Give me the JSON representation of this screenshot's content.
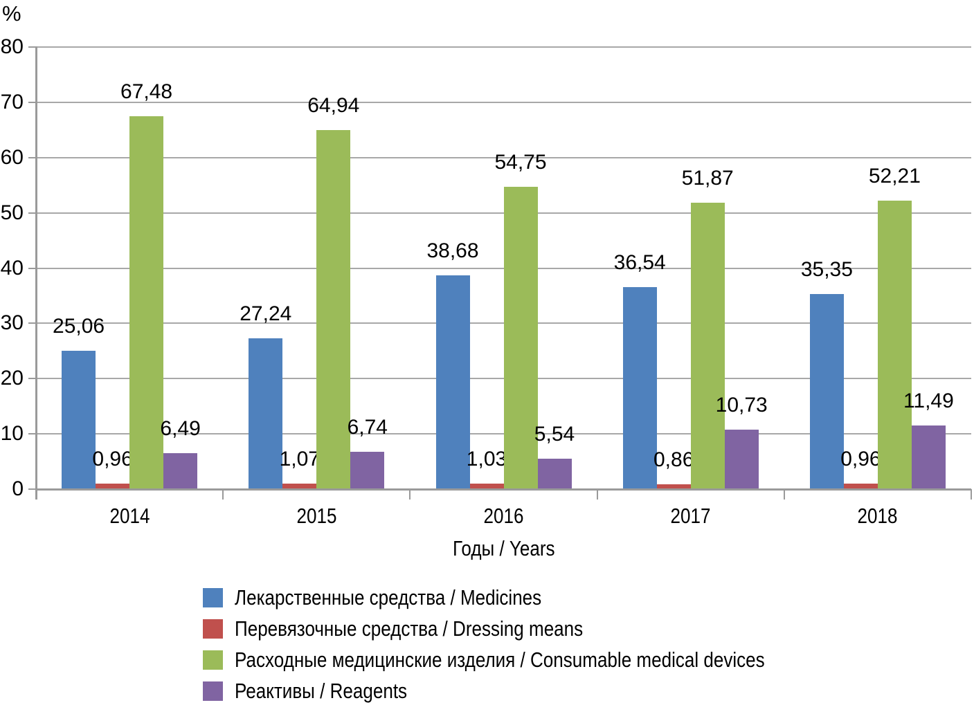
{
  "figure": {
    "y_unit_label": "%",
    "x_axis_title": "Годы / Years"
  },
  "chart_data": {
    "type": "bar",
    "title": "",
    "xlabel": "Годы / Years",
    "ylabel": "%",
    "categories": [
      "2014",
      "2015",
      "2016",
      "2017",
      "2018"
    ],
    "series": [
      {
        "name": "Лекарственные средства / Medicines",
        "color": "#4F81BD",
        "values": [
          25.06,
          27.24,
          38.68,
          36.54,
          35.35
        ],
        "value_labels": [
          "25,06",
          "27,24",
          "38,68",
          "36,54",
          "35,35"
        ]
      },
      {
        "name": "Перевязочные средства / Dressing means",
        "color": "#C0504D",
        "values": [
          0.96,
          1.07,
          1.03,
          0.86,
          0.96
        ],
        "value_labels": [
          "0,96",
          "1,07",
          "1,03",
          "0,86",
          "0,96"
        ]
      },
      {
        "name": "Расходные медицинские изделия / Consumable medical devices",
        "color": "#9BBB59",
        "values": [
          67.48,
          64.94,
          54.75,
          51.87,
          52.21
        ],
        "value_labels": [
          "67,48",
          "64,94",
          "54,75",
          "51,87",
          "52,21"
        ]
      },
      {
        "name": "Реактивы / Reagents",
        "color": "#8064A2",
        "values": [
          6.49,
          6.74,
          5.54,
          10.73,
          11.49
        ],
        "value_labels": [
          "6,49",
          "6,74",
          "5,54",
          "10,73",
          "11,49"
        ]
      }
    ],
    "ylim": [
      0,
      80
    ],
    "yticks": [
      0,
      10,
      20,
      30,
      40,
      50,
      60,
      70,
      80
    ],
    "grid": true,
    "legend_position": "bottom",
    "decimal_separator": ","
  },
  "style_colors": {
    "gridline": "#A8A8A8",
    "axis": "#9A9A9A",
    "text": "#000000",
    "background": "#FFFFFF"
  }
}
